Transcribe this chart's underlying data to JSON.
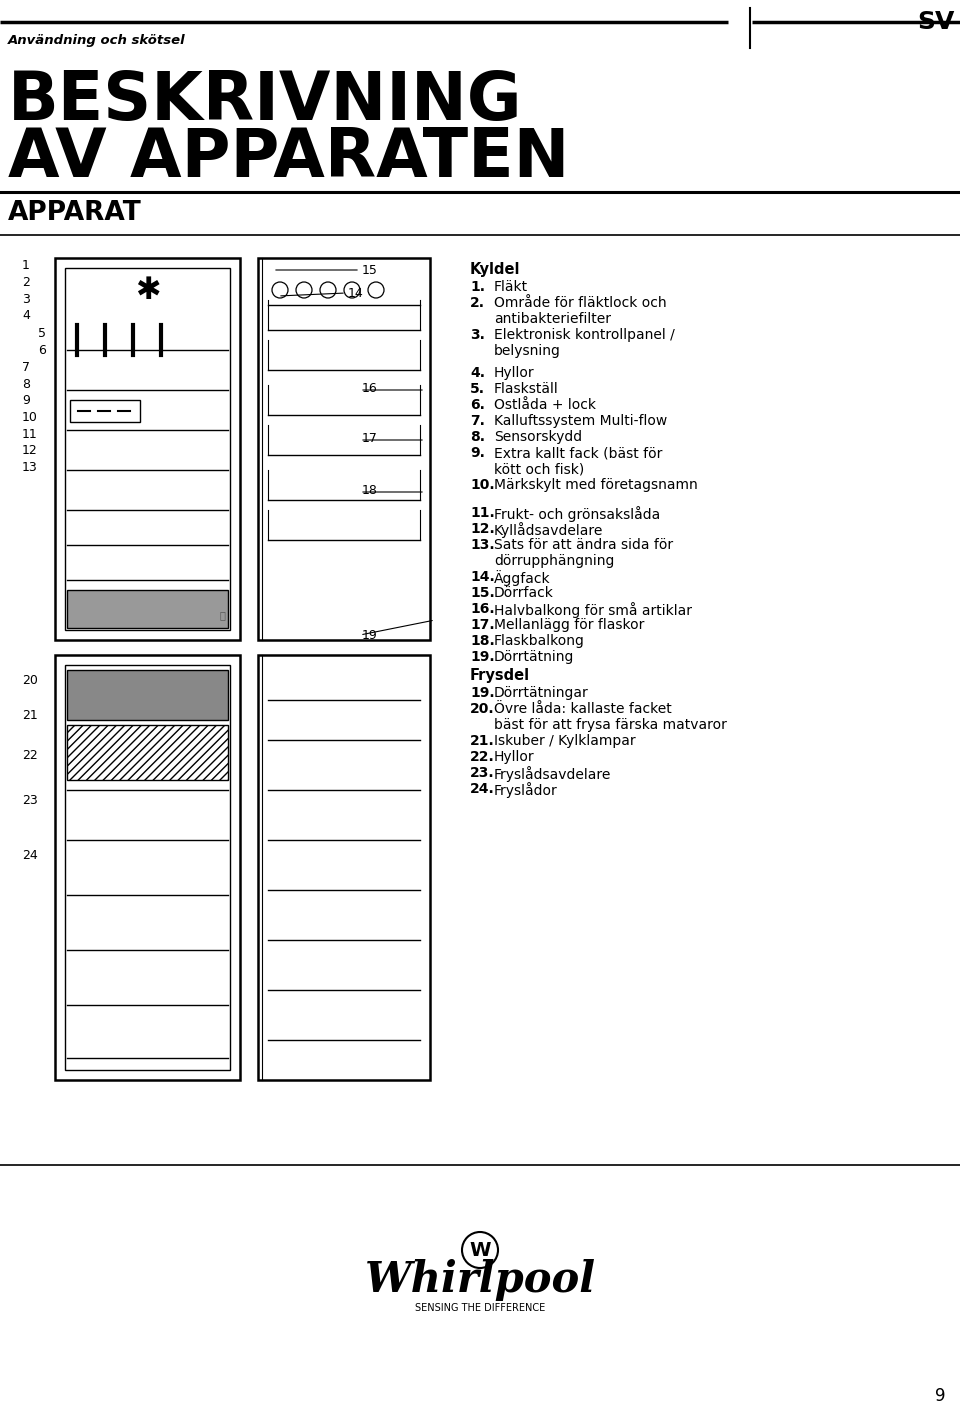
{
  "bg_color": "#ffffff",
  "text_color": "#000000",
  "page_number": "9",
  "lang_tag": "SV",
  "subtitle": "Användning och skötsel",
  "title_line1": "BESKRIVNING",
  "title_line2": "AV APPARATEN",
  "section_label": "APPARAT",
  "kyldel_header": "Kyldel",
  "kyldel_items": [
    {
      "num": "1",
      "text": "Fläkt"
    },
    {
      "num": "2",
      "text": "Område för fläktlock och\nantibakteriefilter"
    },
    {
      "num": "3",
      "text": "Elektronisk kontrollpanel /\nbelysning"
    },
    {
      "num": "4",
      "text": "Hyllor"
    },
    {
      "num": "5",
      "text": "Flaskställ"
    },
    {
      "num": "6",
      "text": "Ostlåda + lock"
    },
    {
      "num": "7",
      "text": "Kalluftssystem Multi-flow"
    },
    {
      "num": "8",
      "text": "Sensorskydd"
    },
    {
      "num": "9",
      "text": "Extra kallt fack (bäst för\nkött och fisk)"
    },
    {
      "num": "10",
      "text": "Märkskylt med företagsnamn"
    }
  ],
  "kyldel_items2": [
    {
      "num": "11",
      "text": "Frukt- och grönsakslåda"
    },
    {
      "num": "12",
      "text": "Kyllådsavdelare"
    },
    {
      "num": "13",
      "text": "Sats för att ändra sida för\ndörrupphängning"
    },
    {
      "num": "14",
      "text": "Äggfack"
    },
    {
      "num": "15",
      "text": "Dörrfack"
    },
    {
      "num": "16",
      "text": "Halvbalkong för små artiklar"
    },
    {
      "num": "17",
      "text": "Mellanlägg för flaskor"
    },
    {
      "num": "18",
      "text": "Flaskbalkong"
    },
    {
      "num": "19",
      "text": "Dörrtätning"
    }
  ],
  "frysdel_header": "Frysdel",
  "frysdel_items": [
    {
      "num": "19",
      "text": "Dörrtätningar"
    },
    {
      "num": "20",
      "text": "Övre låda: kallaste facket\nbäst för att frysa färska matvaror"
    },
    {
      "num": "21",
      "text": "Iskuber / Kylklampar"
    },
    {
      "num": "22",
      "text": "Hyllor"
    },
    {
      "num": "23",
      "text": "Fryslådsavdelare"
    },
    {
      "num": "24",
      "text": "Fryslådor"
    }
  ]
}
